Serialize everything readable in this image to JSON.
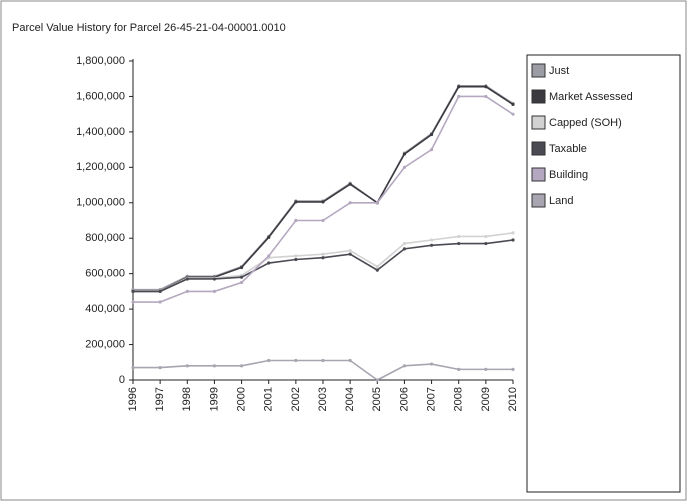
{
  "chart_data": {
    "type": "line",
    "title": "Parcel Value History for Parcel 26-45-21-04-00001.0010",
    "categories": [
      "1996",
      "1997",
      "1998",
      "1999",
      "2000",
      "2001",
      "2002",
      "2003",
      "2004",
      "2005",
      "2006",
      "2007",
      "2008",
      "2009",
      "2010"
    ],
    "series": [
      {
        "name": "Just",
        "color": "#9c9ca4",
        "values": [
          510000,
          510000,
          585000,
          585000,
          640000,
          810000,
          1010000,
          1010000,
          1110000,
          1000000,
          1280000,
          1390000,
          1660000,
          1660000,
          1560000
        ]
      },
      {
        "name": "Market Assessed",
        "color": "#3a3a40",
        "values": [
          500000,
          500000,
          580000,
          580000,
          635000,
          805000,
          1005000,
          1005000,
          1105000,
          1000000,
          1275000,
          1385000,
          1655000,
          1655000,
          1555000
        ]
      },
      {
        "name": "Capped (SOH)",
        "color": "#d2d2d2",
        "values": [
          500000,
          500000,
          575000,
          575000,
          590000,
          690000,
          700000,
          710000,
          730000,
          640000,
          770000,
          790000,
          810000,
          810000,
          830000
        ]
      },
      {
        "name": "Taxable",
        "color": "#4a4a52",
        "values": [
          500000,
          500000,
          570000,
          570000,
          580000,
          660000,
          680000,
          690000,
          710000,
          620000,
          740000,
          760000,
          770000,
          770000,
          790000
        ]
      },
      {
        "name": "Building",
        "color": "#b4a8c0",
        "values": [
          440000,
          440000,
          500000,
          500000,
          550000,
          700000,
          900000,
          900000,
          1000000,
          1000000,
          1200000,
          1300000,
          1600000,
          1600000,
          1500000
        ]
      },
      {
        "name": "Land",
        "color": "#a8a4b0",
        "values": [
          70000,
          70000,
          80000,
          80000,
          80000,
          110000,
          110000,
          110000,
          110000,
          0,
          80000,
          90000,
          60000,
          60000,
          60000
        ]
      }
    ],
    "ylim": [
      0,
      1800000
    ],
    "yticks": [
      0,
      {
        "value": 200000,
        "label": "200,000"
      },
      {
        "value": 400000,
        "label": "400,000"
      },
      {
        "value": 600000,
        "label": "600,000"
      },
      {
        "value": 800000,
        "label": "800,000"
      },
      {
        "value": 1000000,
        "label": "1,000,000"
      },
      {
        "value": 1200000,
        "label": "1,200,000"
      },
      {
        "value": 1400000,
        "label": "1,400,000"
      },
      {
        "value": 1600000,
        "label": "1,600,000"
      },
      {
        "value": 1800000,
        "label": "1,800,000"
      }
    ]
  }
}
